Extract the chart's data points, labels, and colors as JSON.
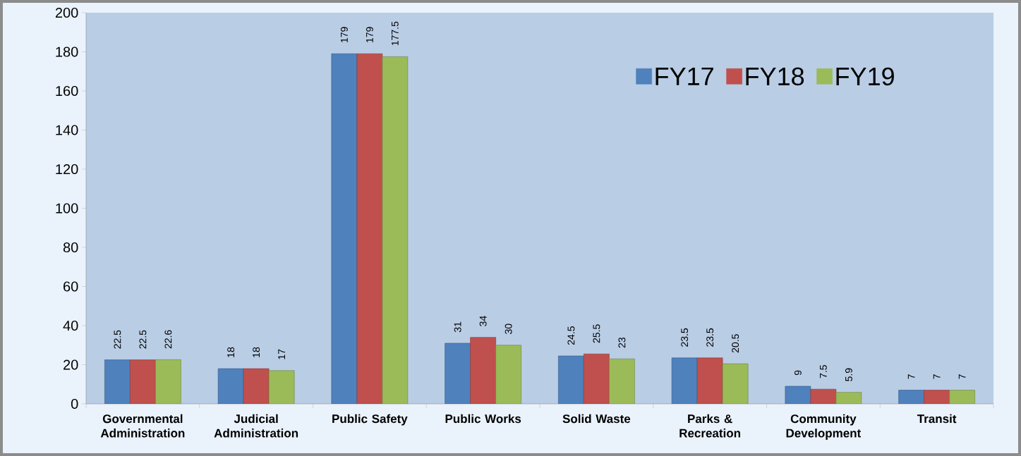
{
  "chart_data": {
    "type": "bar",
    "categories": [
      "Governmental Administration",
      "Judicial Administration",
      "Public Safety",
      "Public Works",
      "Solid Waste",
      "Parks & Recreation",
      "Community Development",
      "Transit"
    ],
    "series": [
      {
        "name": "FY17",
        "color": "#4f81bd",
        "values": [
          22.5,
          18,
          179,
          31,
          24.5,
          23.5,
          9,
          7
        ]
      },
      {
        "name": "FY18",
        "color": "#c0504d",
        "values": [
          22.5,
          18,
          179,
          34,
          25.5,
          23.5,
          7.5,
          7
        ]
      },
      {
        "name": "FY19",
        "color": "#9bbb59",
        "values": [
          22.6,
          17,
          177.5,
          30,
          23,
          20.5,
          5.9,
          7
        ]
      }
    ],
    "ylim": [
      0,
      200
    ],
    "yticks": [
      0,
      20,
      40,
      60,
      80,
      100,
      120,
      140,
      160,
      180,
      200
    ],
    "data_labels": true,
    "legend": "top right"
  }
}
